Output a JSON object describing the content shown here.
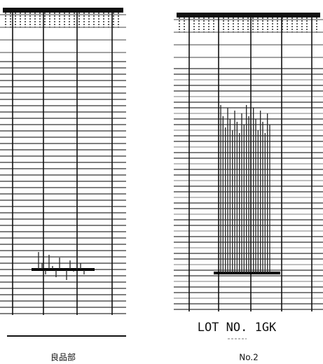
{
  "panels": [
    {
      "caption": "良品部"
    },
    {
      "annotation": "LOT NO. 1GK",
      "caption": "No.2"
    }
  ]
}
